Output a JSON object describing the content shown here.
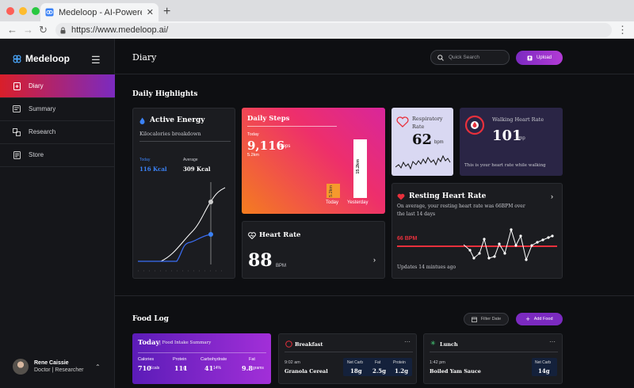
{
  "browser": {
    "tab_title": "Medeloop - AI-Powered Research",
    "url": "https://www.medeloop.ai/"
  },
  "sidebar": {
    "brand": "Medeloop",
    "items": [
      {
        "label": "Diary",
        "icon": "diary-icon"
      },
      {
        "label": "Summary",
        "icon": "summary-icon"
      },
      {
        "label": "Research",
        "icon": "research-icon"
      },
      {
        "label": "Store",
        "icon": "store-icon"
      }
    ],
    "user": {
      "name": "Rene Caissie",
      "role": "Doctor | Researcher"
    }
  },
  "header": {
    "title": "Diary",
    "search_placeholder": "Quick Search",
    "upload_label": "Upload"
  },
  "highlights": {
    "title": "Daily Highlights",
    "active_energy": {
      "title": "Active Energy",
      "subtitle": "Kilocalories breakdown",
      "today_label": "Today",
      "today_value": "116 Kcal",
      "average_label": "Average",
      "average_value": "309 Kcal"
    },
    "daily_steps": {
      "title": "Daily Steps",
      "today_label": "Today",
      "steps": "9,116",
      "steps_unit": "Steps",
      "distance": "5.2km",
      "bar_today_label": "5.2km",
      "bar_yesterday_label": "15.2km",
      "x_today": "Today",
      "x_yesterday": "Yesterday",
      "today_km": 5.2,
      "yesterday_km": 15.2
    },
    "respiratory": {
      "title": "Respiratory Rate",
      "value": "62",
      "unit": "bpm"
    },
    "walking_hr": {
      "title": "Walking Heart Rate",
      "value": "101",
      "unit": "bmp",
      "note": "This is your heart rate while walking"
    },
    "resting_hr": {
      "title": "Resting Heart Rate",
      "description": "On average, your resting heart rate was 66BPM over the last 14 days",
      "threshold_label": "66 BPM",
      "updated": "Updates 14 mintues ago"
    },
    "heart_rate": {
      "title": "Heart Rate",
      "value": "88",
      "unit": "BPM"
    }
  },
  "food_log": {
    "title": "Food Log",
    "filter_label": "Filter Date",
    "add_label": "Add Food",
    "today": {
      "title": "Today",
      "subtitle": "Food Intake Summary",
      "columns": [
        {
          "label": "Calories",
          "value": "710",
          "unit": "Kcals"
        },
        {
          "label": "Protein",
          "value": "111",
          "unit": "g"
        },
        {
          "label": "Carbohydrate",
          "value": "41",
          "unit": "14%"
        },
        {
          "label": "Fat",
          "value": "9.8",
          "unit": "grams"
        }
      ]
    },
    "breakfast": {
      "title": "Breakfast",
      "time": "9:02 am",
      "item": "Granola Cereal",
      "net_carb_label": "Net Carb",
      "net_carb": "18g",
      "fat_label": "Fat",
      "fat": "2.5g",
      "protein_label": "Protein",
      "protein": "1.2g"
    },
    "lunch": {
      "title": "Lunch",
      "time": "1:42 pm",
      "item": "Boiled Yam Sauce",
      "net_carb_label": "Net Carb",
      "net_carb": "14g"
    }
  },
  "colors": {
    "accent_red": "#e8303c",
    "accent_purple": "#9b33d1",
    "card": "#1b1c20"
  }
}
